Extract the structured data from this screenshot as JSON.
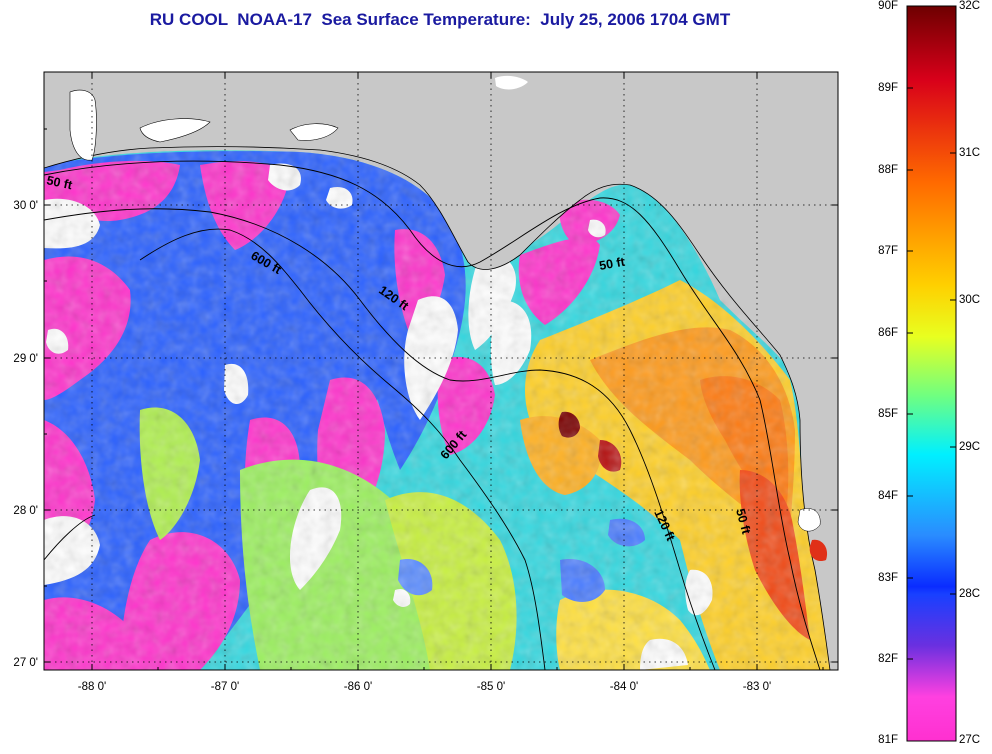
{
  "title": "RU COOL  NOAA-17  Sea Surface Temperature:  July 25, 2006 1704 GMT",
  "map": {
    "lon_ticks": [
      "-88 0'",
      "-87 0'",
      "-86 0'",
      "-85 0'",
      "-84 0'",
      "-83 0'"
    ],
    "lat_ticks": [
      "30 0'",
      "29 0'",
      "28 0'",
      "27 0'"
    ],
    "contours": {
      "c50a": "50 ft",
      "c600a": "600 ft",
      "c120a": "120 ft",
      "c50b": "50 ft",
      "c600b": "600 ft",
      "c120b": "120 ft",
      "c50c": "50 ft"
    },
    "colors": {
      "land": "#c8c8c8",
      "cloud": "#ffffff",
      "magenta": "#ff33cc",
      "blue": "#2a5cff",
      "cyan": "#33e0e8",
      "yellow": "#ffe833",
      "orange": "#ff8a1a",
      "red": "#e0201a",
      "darkred": "#7a0000"
    }
  },
  "colorbar": {
    "fahrenheit": [
      "90F",
      "89F",
      "88F",
      "87F",
      "86F",
      "85F",
      "84F",
      "83F",
      "82F",
      "81F"
    ],
    "celsius": [
      "32C",
      "31C",
      "30C",
      "29C",
      "28C",
      "27C"
    ]
  }
}
